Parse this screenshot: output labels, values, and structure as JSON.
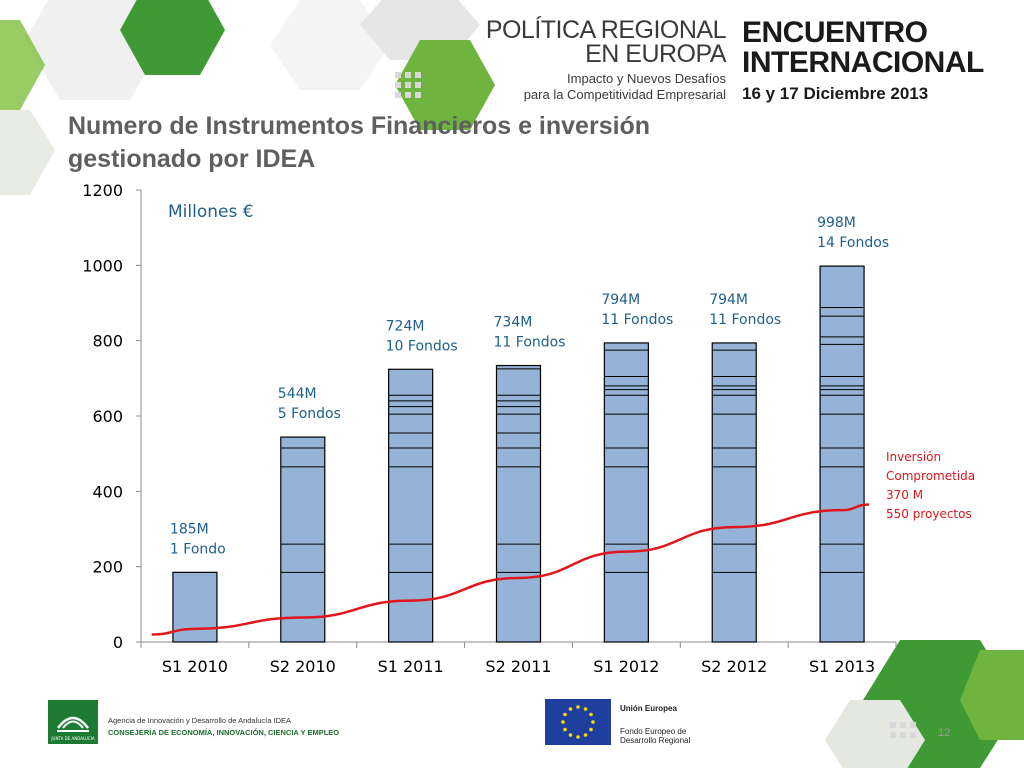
{
  "title": "Numero de Instrumentos Financieros e inversión gestionado por IDEA",
  "header": {
    "left_line1": "POLÍTICA REGIONAL",
    "left_line2": "EN EUROPA",
    "left_sub1": "Impacto y Nuevos Desafíos",
    "left_sub2": "para la Competitividad Empresarial",
    "right_line1": "ENCUENTRO",
    "right_line2": "INTERNACIONAL",
    "right_date": "16 y 17 Diciembre 2013"
  },
  "footer": {
    "agency": "Agencia de Innovación y Desarrollo de Andalucía IDEA",
    "ministry": "CONSEJERÍA DE ECONOMÍA, INNOVACIÓN, CIENCIA Y EMPLEO",
    "junta": "JUNTA DE ANDALUCIA",
    "eu_title": "Unión Europea",
    "eu_fund1": "Fondo Europeo de",
    "eu_fund2": "Desarrollo Regional",
    "page": "12"
  },
  "colors": {
    "bar": "#95b3d7",
    "line": "#e0161c",
    "label": "#1f5f8b",
    "green": "#3f9a35",
    "title": "#5f5f5f"
  },
  "chart_data": {
    "type": "bar",
    "unit_label": "Millones €",
    "categories": [
      "S1 2010",
      "S2 2010",
      "S1 2011",
      "S2 2011",
      "S1 2012",
      "S2 2012",
      "S1 2013"
    ],
    "values": [
      185,
      544,
      724,
      734,
      794,
      794,
      998
    ],
    "fondos": [
      1,
      5,
      10,
      11,
      11,
      11,
      14
    ],
    "bar_labels": [
      [
        "185M",
        "1 Fondo"
      ],
      [
        "544M",
        "5 Fondos"
      ],
      [
        "724M",
        "10 Fondos"
      ],
      [
        "734M",
        "11 Fondos"
      ],
      [
        "794M",
        "11 Fondos"
      ],
      [
        "794M",
        "11 Fondos"
      ],
      [
        "998M",
        "14 Fondos"
      ]
    ],
    "segments": [
      [
        185
      ],
      [
        185,
        260,
        465,
        515,
        544
      ],
      [
        185,
        260,
        465,
        515,
        555,
        605,
        625,
        640,
        655,
        724
      ],
      [
        185,
        260,
        465,
        515,
        555,
        605,
        625,
        640,
        655,
        725,
        734
      ],
      [
        185,
        260,
        465,
        515,
        605,
        655,
        670,
        680,
        705,
        775,
        794
      ],
      [
        185,
        260,
        465,
        515,
        605,
        655,
        670,
        680,
        705,
        775,
        794
      ],
      [
        185,
        260,
        465,
        515,
        605,
        655,
        670,
        680,
        705,
        790,
        810,
        865,
        888,
        998
      ]
    ],
    "ylim": [
      0,
      1200
    ],
    "yticks": [
      0,
      200,
      400,
      600,
      800,
      1000,
      1200
    ],
    "line_series": {
      "name": "Inversión Comprometida",
      "points": [
        [
          -0.4,
          20
        ],
        [
          0,
          35
        ],
        [
          1,
          65
        ],
        [
          2,
          110
        ],
        [
          3,
          170
        ],
        [
          4,
          240
        ],
        [
          5,
          305
        ],
        [
          6,
          350
        ],
        [
          6.25,
          365
        ]
      ],
      "annotation": [
        "Inversión",
        "Comprometida",
        "370 M",
        "550 proyectos"
      ]
    },
    "grid": false,
    "legend": "none"
  }
}
